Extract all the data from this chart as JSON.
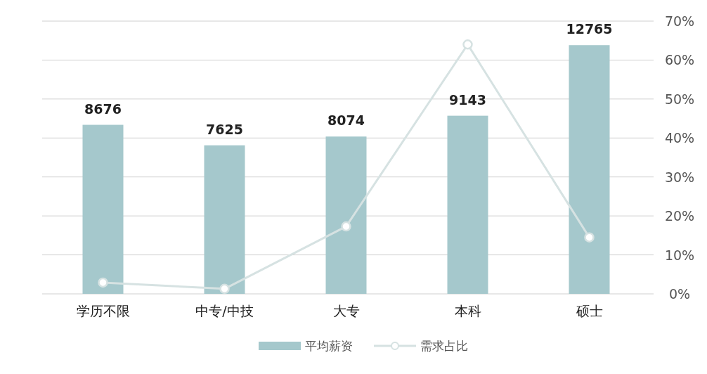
{
  "chart_data": {
    "type": "bar",
    "categories": [
      "学历不限",
      "中专/中技",
      "大专",
      "本科",
      "硕士"
    ],
    "series": [
      {
        "name": "平均薪资",
        "color": "#a5c8cc",
        "values": [
          8676,
          7625,
          8074,
          9143,
          12765
        ],
        "value_labels": [
          "8676",
          "7625",
          "8074",
          "9143",
          "12765"
        ]
      },
      {
        "name": "需求占比",
        "type": "line",
        "axis": "y2",
        "color": "#d6e2e2",
        "marker": "circle",
        "values": [
          2.9,
          1.3,
          17.3,
          64,
          14.5
        ]
      }
    ],
    "ylim": [
      0,
      14000
    ],
    "y2lim": [
      0,
      70
    ],
    "y2ticks": [
      {
        "value": 0,
        "label": "0%"
      },
      {
        "value": 10,
        "label": "10%"
      },
      {
        "value": 20,
        "label": "20%"
      },
      {
        "value": 30,
        "label": "30%"
      },
      {
        "value": 40,
        "label": "40%"
      },
      {
        "value": 50,
        "label": "50%"
      },
      {
        "value": 60,
        "label": "60%"
      },
      {
        "value": 70,
        "label": "70%"
      }
    ],
    "grid": true,
    "legend": "bottom"
  }
}
